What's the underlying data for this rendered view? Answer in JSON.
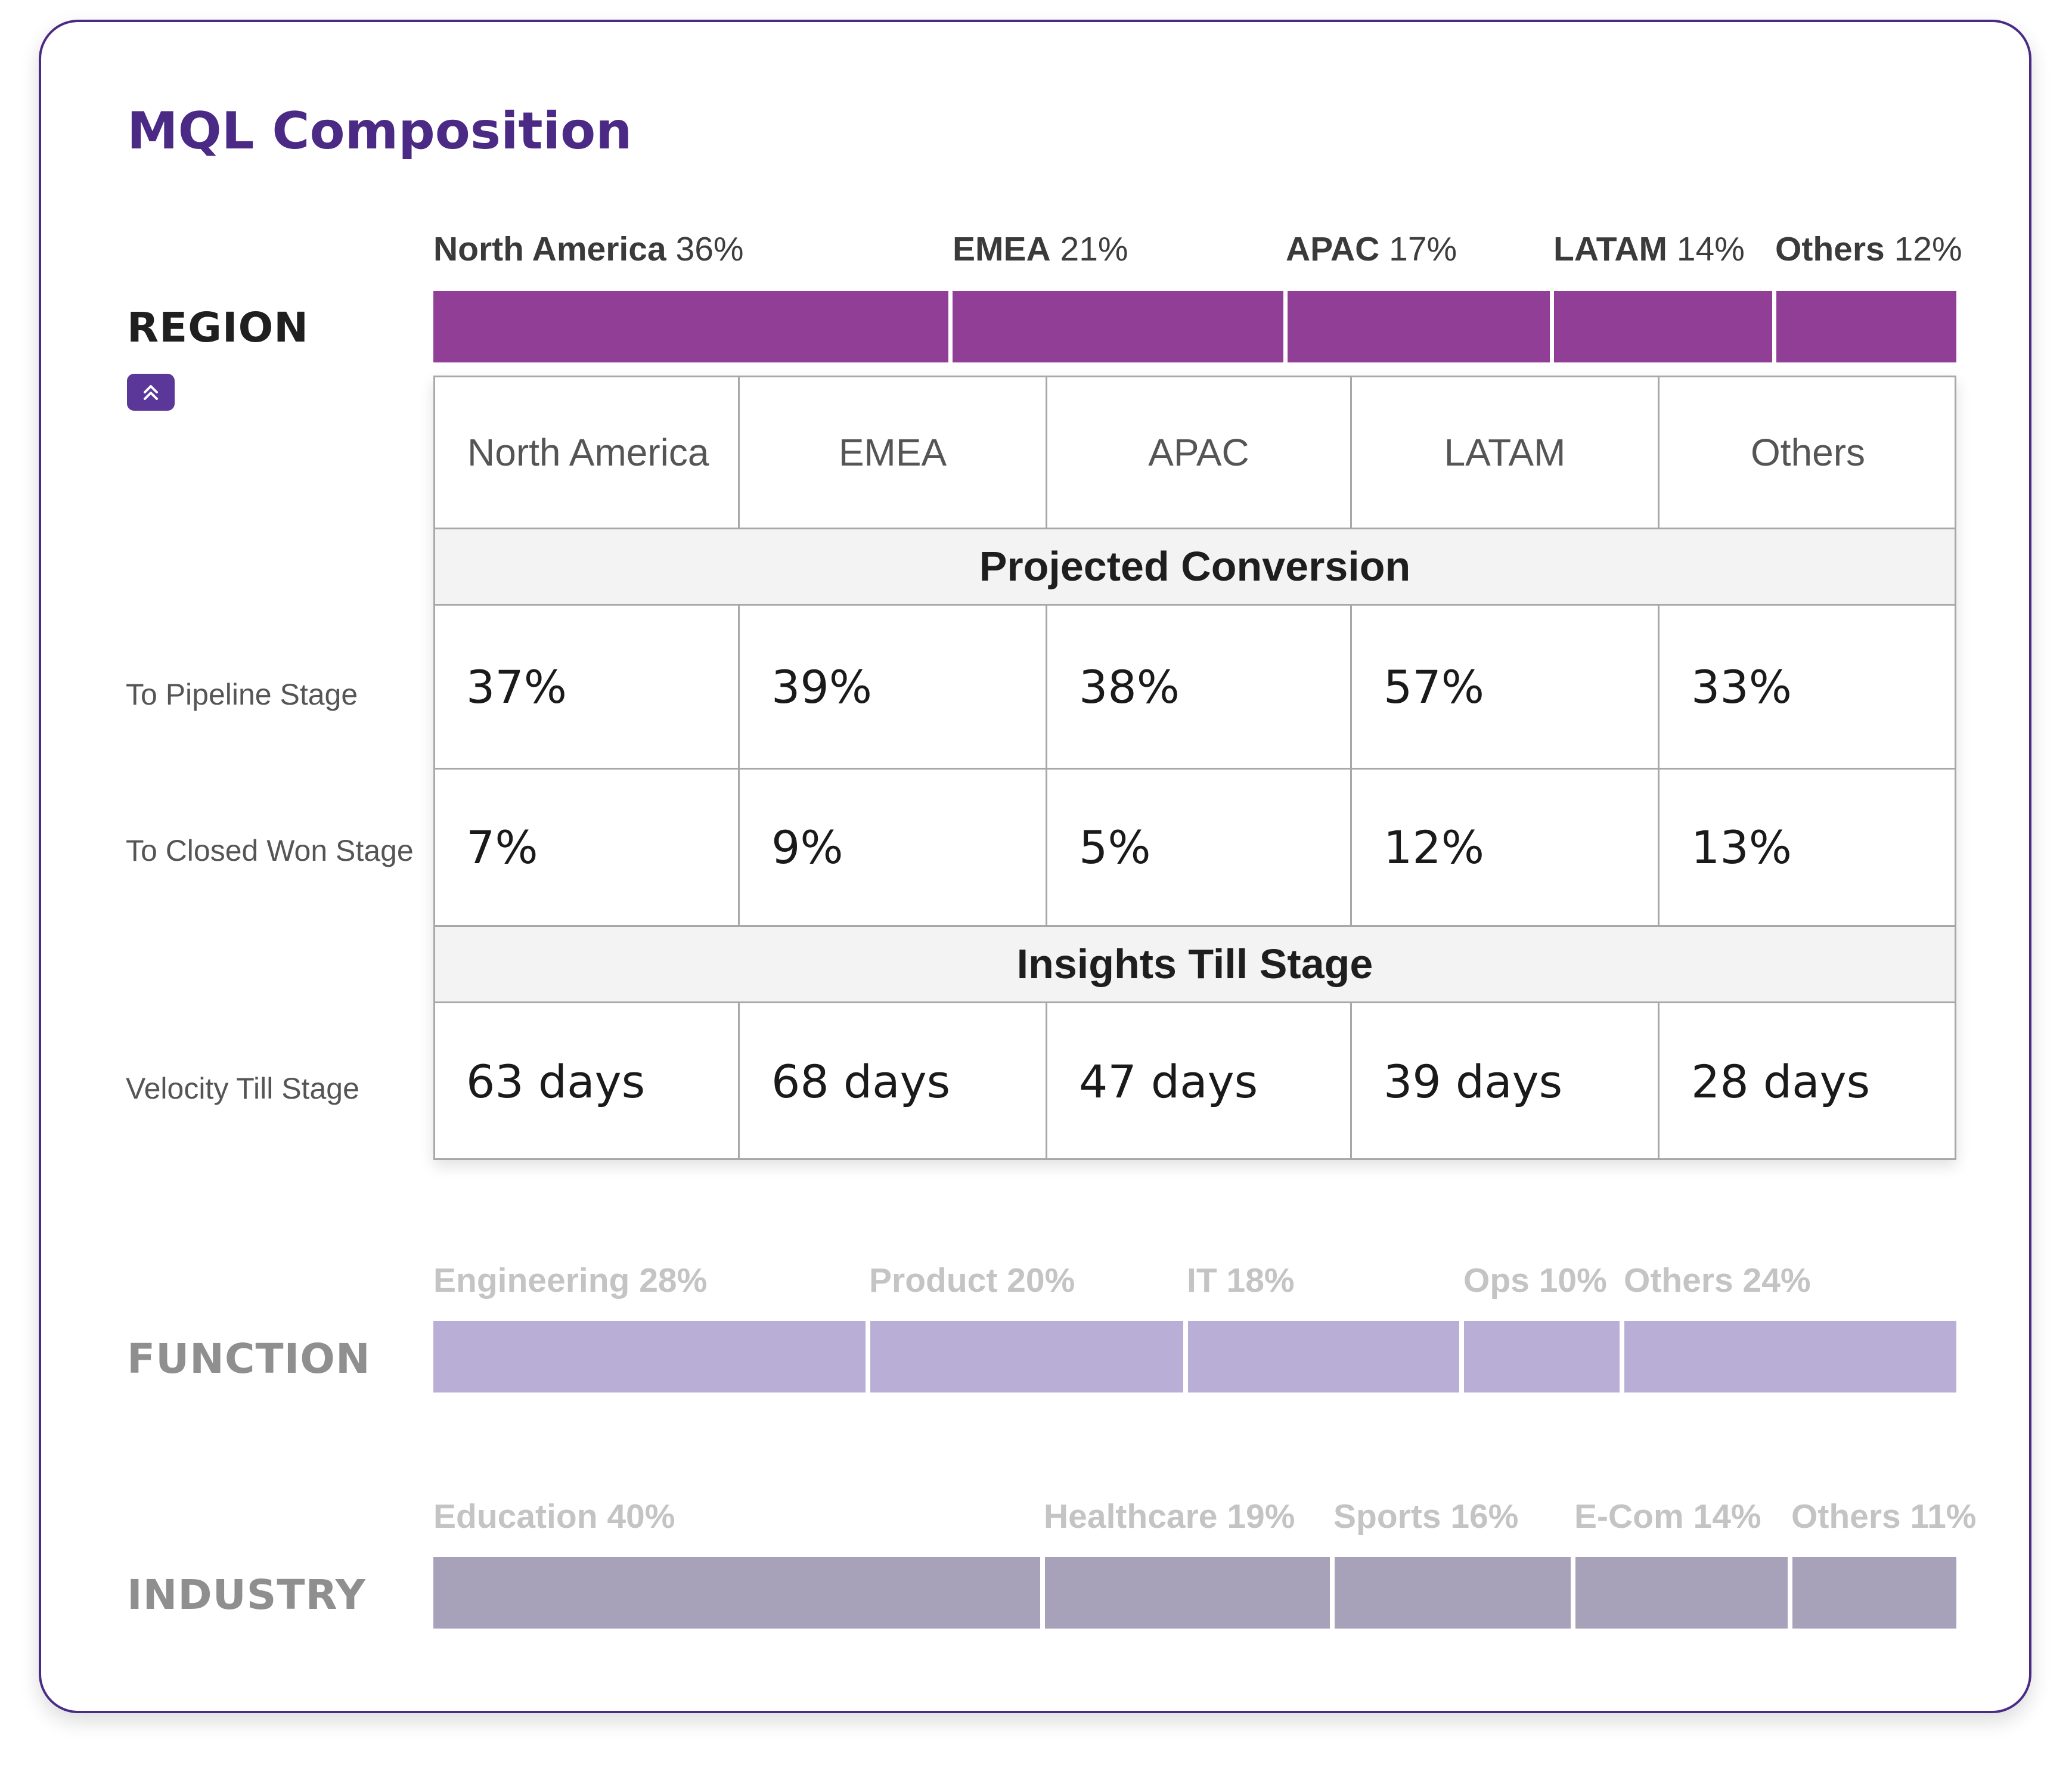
{
  "title": "MQL Composition",
  "region": {
    "label": "REGION",
    "collapse_icon": "chevron-double-up-icon",
    "color": "#913f96",
    "segments": [
      {
        "name": "North America",
        "pct": "36%",
        "share": 36
      },
      {
        "name": "EMEA",
        "pct": "21%",
        "share": 21
      },
      {
        "name": "APAC",
        "pct": "17%",
        "share": 17
      },
      {
        "name": "LATAM",
        "pct": "14%",
        "share": 14
      },
      {
        "name": "Others",
        "pct": "12%",
        "share": 12
      }
    ]
  },
  "table": {
    "columns": [
      "North America",
      "EMEA",
      "APAC",
      "LATAM",
      "Others"
    ],
    "projected_conversion_header": "Projected Conversion",
    "insights_header": "Insights Till Stage",
    "rows": [
      {
        "label": "To Pipeline Stage",
        "values": [
          "37%",
          "39%",
          "38%",
          "57%",
          "33%"
        ]
      },
      {
        "label": "To Closed Won Stage",
        "values": [
          "7%",
          "9%",
          "5%",
          "12%",
          "13%"
        ]
      },
      {
        "label": "Velocity Till Stage",
        "values": [
          "63 days",
          "68 days",
          "47 days",
          "39 days",
          "28 days"
        ]
      }
    ]
  },
  "function": {
    "label": "FUNCTION",
    "color": "#b8aed6",
    "segments": [
      {
        "text": "Engineering 28%",
        "share": 28
      },
      {
        "text": "Product 20%",
        "share": 20
      },
      {
        "text": "IT 18%",
        "share": 18
      },
      {
        "text": "Ops 10%",
        "share": 10
      },
      {
        "text": "Others 24%",
        "share": 24
      }
    ]
  },
  "industry": {
    "label": "INDUSTRY",
    "color": "#a7a2b9",
    "segments": [
      {
        "text": "Education 40%",
        "share": 40
      },
      {
        "text": "Healthcare 19%",
        "share": 19
      },
      {
        "text": "Sports 16%",
        "share": 16
      },
      {
        "text": "E-Com 14%",
        "share": 14
      },
      {
        "text": "Others 11%",
        "share": 11
      }
    ]
  }
}
